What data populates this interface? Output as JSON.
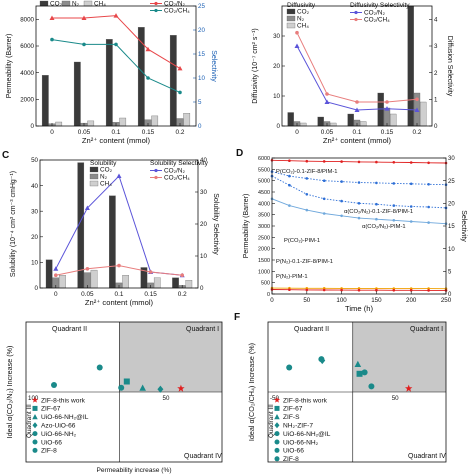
{
  "colors": {
    "co2": "#3a3a3a",
    "n2": "#8c8c8c",
    "ch4": "#cfcfcf",
    "co2n2": "#e8474a",
    "co2ch4": "#1a8a8a",
    "diff_n2_line": "#5b54d9",
    "diff_ch4_line": "#e87d7d",
    "sol_n2_line": "#5b54d9",
    "sol_ch4_line": "#e87d7d",
    "axis_blue": "#1a5fb4",
    "quadrant": "#c8c8c8",
    "teal": "#1a8a8a",
    "star": "#e02020",
    "time_series": [
      "#e02020",
      "#2e6fd6",
      "#2e6fd6",
      "#6fa8dc",
      "#f0a000",
      "#e02020",
      "#7f4fc9"
    ]
  },
  "chart_data": [
    {
      "id": "A",
      "type": "bar",
      "panel_label": "",
      "categories": [
        "0",
        "0.05",
        "0.1",
        "0.15",
        "0.2"
      ],
      "xlabel": "Zn²⁺ content (mmol)",
      "ylabel": "Permeability (Barrer)",
      "y2label": "Selectivity",
      "ylim": [
        0,
        9000
      ],
      "y2lim": [
        0,
        25
      ],
      "yticks": [
        "0",
        "2000",
        "4000",
        "6000",
        "8000"
      ],
      "y2ticks": [
        "0",
        "5",
        "10",
        "15",
        "20",
        "25"
      ],
      "legend": [
        "CO₂",
        "N₂",
        "CH₄",
        "CO₂/N₂",
        "CO₂/CH₄"
      ],
      "series": [
        {
          "name": "CO₂",
          "kind": "bar",
          "values": [
            3800,
            4800,
            6500,
            7400,
            6800
          ]
        },
        {
          "name": "N₂",
          "kind": "bar",
          "values": [
            170,
            220,
            280,
            470,
            560
          ]
        },
        {
          "name": "CH₄",
          "kind": "bar",
          "values": [
            300,
            380,
            600,
            760,
            950
          ]
        },
        {
          "name": "CO₂/N₂",
          "kind": "line",
          "axis": "y2",
          "values": [
            22.5,
            22.5,
            23,
            16,
            12
          ]
        },
        {
          "name": "CO₂/CH₄",
          "kind": "line",
          "axis": "y2",
          "values": [
            18,
            17,
            17,
            10,
            7
          ]
        }
      ]
    },
    {
      "id": "B",
      "type": "bar",
      "panel_label": "",
      "categories": [
        "0",
        "0.05",
        "0.1",
        "0.15",
        "0.2"
      ],
      "xlabel": "Zn²⁺ content (mmol)",
      "ylabel": "Diffusivity (10⁻⁷ cm² s⁻¹)",
      "y2label": "Diffusion Selectivity",
      "ylim": [
        0,
        40
      ],
      "y2lim": [
        0,
        4.5
      ],
      "yticks": [
        "0",
        "10",
        "20",
        "30"
      ],
      "y2ticks": [
        "0",
        "1",
        "2",
        "3",
        "4"
      ],
      "legend_title": "Diffusivity",
      "legend2_title": "Diffusivity Selectivity",
      "legend": [
        "CO₂",
        "N₂",
        "CH₄",
        "CO₂/N₂",
        "CO₂/CH₄"
      ],
      "series": [
        {
          "name": "CO₂",
          "kind": "bar",
          "values": [
            4.5,
            3,
            4,
            11,
            40
          ]
        },
        {
          "name": "N₂",
          "kind": "bar",
          "values": [
            1.5,
            1.5,
            2,
            6,
            11
          ]
        },
        {
          "name": "CH₄",
          "kind": "bar",
          "values": [
            1,
            1,
            1.5,
            4,
            8
          ]
        },
        {
          "name": "CO₂/N₂",
          "kind": "line",
          "axis": "y2",
          "values": [
            3.0,
            0.9,
            0.6,
            0.65,
            0.6
          ]
        },
        {
          "name": "CO₂/CH₄",
          "kind": "line",
          "axis": "y2",
          "values": [
            3.5,
            1.2,
            0.9,
            0.9,
            1.0
          ]
        }
      ]
    },
    {
      "id": "C",
      "type": "bar",
      "panel_label": "C",
      "categories": [
        "0",
        "0.05",
        "0.1",
        "0.15",
        "0.2"
      ],
      "xlabel": "Zn²⁺ content (mmol)",
      "ylabel": "Solubility (10⁻⁴ cm³ cm⁻³ cmHg⁻¹)",
      "y2label": "Solubility Selectivity",
      "ylim": [
        0,
        50
      ],
      "y2lim": [
        0,
        40
      ],
      "yticks": [
        "0",
        "10",
        "20",
        "30",
        "40",
        "50"
      ],
      "y2ticks": [
        "0",
        "10",
        "20",
        "30",
        "40"
      ],
      "legend_title": "Solubility",
      "legend2_title": "Solubility Selectivity",
      "legend": [
        "CO₂",
        "N₂",
        "CH₄",
        "CO₂/N₂",
        "CO₂/CH₄"
      ],
      "series": [
        {
          "name": "CO₂",
          "kind": "bar",
          "values": [
            11,
            49,
            36,
            8,
            4
          ]
        },
        {
          "name": "N₂",
          "kind": "bar",
          "values": [
            4,
            6,
            2,
            2,
            1
          ]
        },
        {
          "name": "CH₄",
          "kind": "bar",
          "values": [
            5,
            7,
            5,
            4,
            3
          ]
        },
        {
          "name": "CO₂/N₂",
          "kind": "line",
          "axis": "y2",
          "values": [
            6,
            25,
            35,
            5,
            4
          ]
        },
        {
          "name": "CO₂/CH₄",
          "kind": "line",
          "axis": "y2",
          "values": [
            4,
            6,
            7,
            5,
            4
          ]
        }
      ]
    },
    {
      "id": "D",
      "type": "line",
      "panel_label": "D",
      "xlabel": "Time (h)",
      "ylabel": "Permeability (Barrer)",
      "y2label": "Selectivity",
      "xlim": [
        0,
        250
      ],
      "ylim": [
        0,
        6000
      ],
      "y2lim": [
        0,
        30
      ],
      "xticks": [
        "0",
        "50",
        "100",
        "150",
        "200",
        "250"
      ],
      "yticks": [
        "0",
        "500",
        "1000",
        "1500",
        "2000",
        "2500",
        "3000",
        "3500",
        "4000",
        "4500",
        "5000",
        "5500",
        "6000"
      ],
      "y2ticks": [
        "0",
        "5",
        "10",
        "15",
        "20",
        "25",
        "30"
      ],
      "annotations": [
        "P(CO₂)-0.1-ZIF-8/PIM-1",
        "α(CO₂/N₂)-0.1-ZIF-8/PIM-1",
        "α(CO₂/N₂)-PIM-1",
        "P(CO₂)-PIM-1",
        "P(N₂)-0.1-ZIF-8/PIM-1",
        "P(N₂)-PIM-1"
      ],
      "x": [
        0,
        25,
        50,
        75,
        100,
        125,
        150,
        175,
        200,
        225,
        250
      ],
      "series": [
        {
          "name": "P(CO₂)-0.1-ZIF-8/PIM-1",
          "axis": "y",
          "values": [
            5900,
            5880,
            5860,
            5850,
            5840,
            5830,
            5820,
            5810,
            5800,
            5790,
            5780
          ]
        },
        {
          "name": "α(CO₂/N₂)-0.1-ZIF-8/PIM-1",
          "axis": "y2",
          "values": [
            27,
            26,
            25.5,
            25,
            24.8,
            24.6,
            24.5,
            24.4,
            24.3,
            24.2,
            24.1
          ]
        },
        {
          "name": "α(CO₂/N₂)-PIM-1",
          "axis": "y2",
          "values": [
            26,
            24,
            22,
            21,
            20.5,
            20,
            19.8,
            19.5,
            19.3,
            19.2,
            19
          ]
        },
        {
          "name": "P(CO₂)-PIM-1",
          "axis": "y",
          "values": [
            4200,
            3900,
            3700,
            3550,
            3450,
            3350,
            3300,
            3250,
            3200,
            3150,
            3100
          ]
        },
        {
          "name": "P(N₂)-0.1-ZIF-8/PIM-1",
          "axis": "y",
          "values": [
            260,
            255,
            250,
            250,
            245,
            245,
            240,
            240,
            240,
            238,
            236
          ]
        },
        {
          "name": "P(N₂)-PIM-1",
          "axis": "y",
          "values": [
            200,
            190,
            180,
            175,
            170,
            168,
            166,
            164,
            162,
            160,
            158
          ]
        }
      ]
    },
    {
      "id": "E",
      "type": "scatter",
      "panel_label": "E",
      "ylabel": "Ideal α(CO₂/N₂) Increase (%)",
      "xlabel": "Permeability increase (%)",
      "xlim": [
        -100,
        110
      ],
      "ylim": [
        -100,
        100
      ],
      "xtick_labels": [
        "100",
        "50"
      ],
      "quadrants": [
        "Quadrant II",
        "Quadrant I",
        "Quadrant III",
        "Quadrant IV"
      ],
      "legend": [
        "ZIF-8-this work",
        "ZIF-67",
        "UiO-66-NH₂@IL",
        "Azo-UiO-66",
        "UiO-66-NH₂",
        "UiO-66",
        "ZIF-8"
      ],
      "points": [
        {
          "series": "ZIF-8-this work",
          "x": 66,
          "y": 5
        },
        {
          "series": "ZIF-67",
          "x": 8,
          "y": 15
        },
        {
          "series": "UiO-66-NH₂@IL",
          "x": 25,
          "y": 6
        },
        {
          "series": "Azo-UiO-66",
          "x": 44,
          "y": 4
        },
        {
          "series": "UiO-66-NH₂",
          "x": -21,
          "y": 35
        },
        {
          "series": "UiO-66",
          "x": -70,
          "y": 10
        },
        {
          "series": "ZIF-8",
          "x": 2,
          "y": 6
        }
      ]
    },
    {
      "id": "F",
      "type": "scatter",
      "panel_label": "F",
      "ylabel": "Ideal α(CO₂/CH₄) Increase (%)",
      "xlim": [
        -100,
        110
      ],
      "ylim": [
        -100,
        100
      ],
      "xtick_labels": [
        "-50",
        "50"
      ],
      "quadrants": [
        "Quadrant II",
        "Quadrant I",
        "Quadrant III",
        "Quadrant IV"
      ],
      "legend": [
        "ZIF-8-this work",
        "ZIF-67",
        "ZIF-S",
        "NH₂-ZIF-7",
        "UiO-66-NH₂@IL",
        "UiO-66-NH₂",
        "UiO-66",
        "ZIF-8"
      ],
      "points": [
        {
          "series": "ZIF-8-this work",
          "x": 66,
          "y": 5
        },
        {
          "series": "ZIF-67",
          "x": 8,
          "y": 26
        },
        {
          "series": "ZIF-S",
          "x": 6,
          "y": 40
        },
        {
          "series": "NH₂-ZIF-7",
          "x": -36,
          "y": 45
        },
        {
          "series": "UiO-66-NH₂@IL",
          "x": -37,
          "y": 47
        },
        {
          "series": "UiO-66-NH₂",
          "x": 14,
          "y": 28
        },
        {
          "series": "UiO-66",
          "x": -75,
          "y": 35
        },
        {
          "series": "ZIF-8",
          "x": 22,
          "y": 8
        }
      ]
    }
  ]
}
